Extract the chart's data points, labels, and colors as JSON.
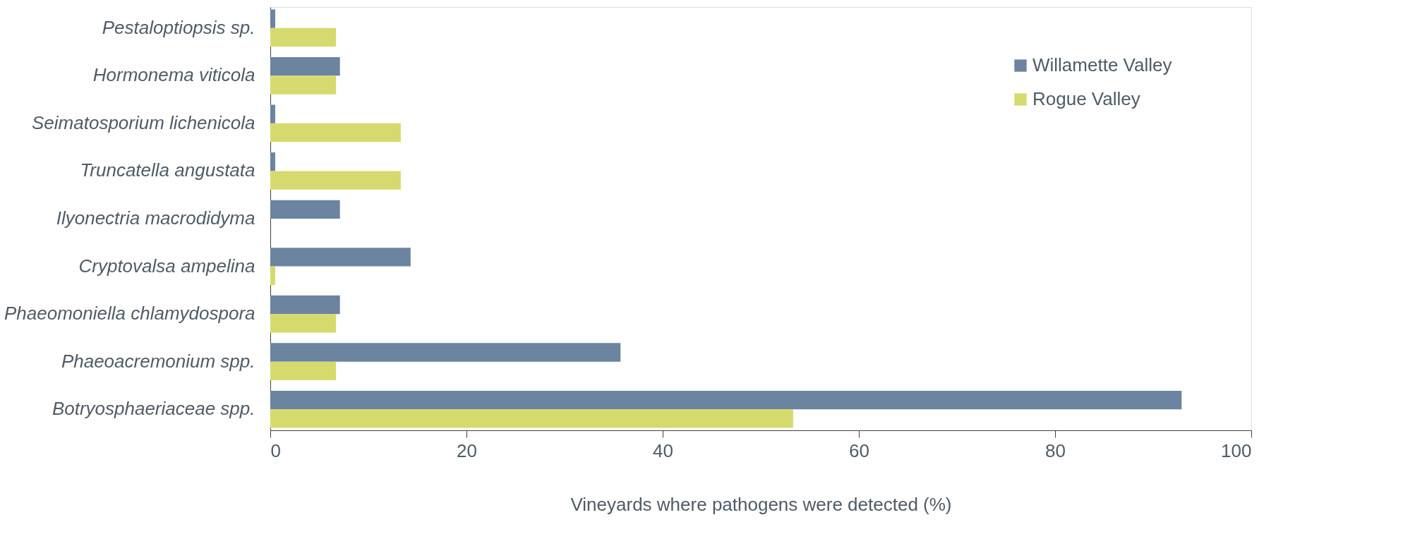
{
  "chart_data": {
    "type": "bar",
    "orientation": "horizontal",
    "xlabel": "Vineyards where pathogens were detected (%)",
    "categories": [
      "Pestaloptiopsis sp.",
      "Hormonema viticola",
      "Seimatosporium lichenicola",
      "Truncatella angustata",
      "Ilyonectria macrodidyma",
      "Cryptovalsa ampelina",
      "Phaeomoniella chlamydospora",
      "Phaeoacremonium spp.",
      "Botryosphaeriaceae spp."
    ],
    "series": [
      {
        "name": "Willamette Valley",
        "color": "#6b84a0",
        "values": [
          0.5,
          7.1,
          0.5,
          0.5,
          7.1,
          14.3,
          7.1,
          35.7,
          92.9
        ]
      },
      {
        "name": "Rogue Valley",
        "color": "#d6da6e",
        "values": [
          6.7,
          6.7,
          13.3,
          13.3,
          null,
          0.5,
          6.7,
          6.7,
          53.3
        ]
      }
    ],
    "xlim": [
      0,
      100
    ],
    "xticks": [
      0,
      20,
      40,
      60,
      80,
      100
    ],
    "grid": false,
    "legend": "top right"
  }
}
